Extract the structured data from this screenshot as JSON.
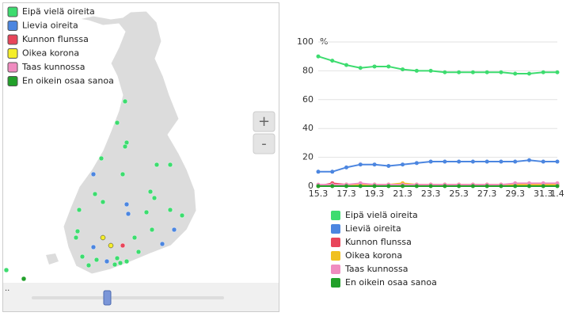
{
  "map": {
    "legend": [
      {
        "label": "Eipä vielä oireita",
        "color": "#3ddc6f"
      },
      {
        "label": "Lievia oireita",
        "color": "#4c86e0"
      },
      {
        "label": "Kunnon flunssa",
        "color": "#e8455a"
      },
      {
        "label": "Oikea korona",
        "color": "#f5ee2a"
      },
      {
        "label": "Taas kunnossa",
        "color": "#f08cc0"
      },
      {
        "label": "En oikein osaa sanoa",
        "color": "#22a02a"
      }
    ],
    "zoom_in": "+",
    "zoom_out": "-",
    "slider_label": ".."
  },
  "chart_data": {
    "type": "line",
    "y_label": "%",
    "categories": [
      "15.3",
      null,
      "17.3",
      null,
      "19.3",
      null,
      "21.3",
      null,
      "23.3",
      null,
      "25.3",
      null,
      "27.3",
      null,
      "29.3",
      null,
      "31.3",
      "1.4"
    ],
    "series": [
      {
        "name": "Eipä vielä oireita",
        "color": "#3ddc6f",
        "values": [
          90,
          87,
          84,
          82,
          83,
          83,
          81,
          80,
          80,
          79,
          79,
          79,
          79,
          79,
          78,
          78,
          79,
          79
        ]
      },
      {
        "name": "Lieviä oireita",
        "color": "#4c86e0",
        "values": [
          10,
          10,
          13,
          15,
          15,
          14,
          15,
          16,
          17,
          17,
          17,
          17,
          17,
          17,
          17,
          18,
          17,
          17
        ]
      },
      {
        "name": "Kunnon flunssa",
        "color": "#e8455a",
        "values": [
          0,
          2,
          1,
          1,
          1,
          1,
          1,
          1,
          1,
          1,
          1,
          1,
          1,
          1,
          1,
          1,
          1,
          1
        ]
      },
      {
        "name": "Oikea korona",
        "color": "#f0c020",
        "values": [
          0,
          1,
          1,
          1,
          1,
          1,
          2,
          1,
          1,
          1,
          1,
          1,
          1,
          1,
          1,
          1,
          1,
          1
        ]
      },
      {
        "name": "Taas kunnossa",
        "color": "#f08cc0",
        "values": [
          1,
          1,
          1,
          2,
          1,
          1,
          1,
          1,
          1,
          1,
          1,
          1,
          1,
          1,
          2,
          2,
          2,
          2
        ]
      },
      {
        "name": "En oikein osaa sanoa",
        "color": "#22a02a",
        "values": [
          0,
          0,
          0,
          0,
          0,
          0,
          0,
          0,
          0,
          0,
          0,
          0,
          0,
          0,
          0,
          0,
          0,
          0
        ]
      }
    ],
    "ylim": [
      0,
      100
    ],
    "yticks": [
      0,
      20,
      40,
      60,
      80,
      100
    ],
    "grid": true
  }
}
